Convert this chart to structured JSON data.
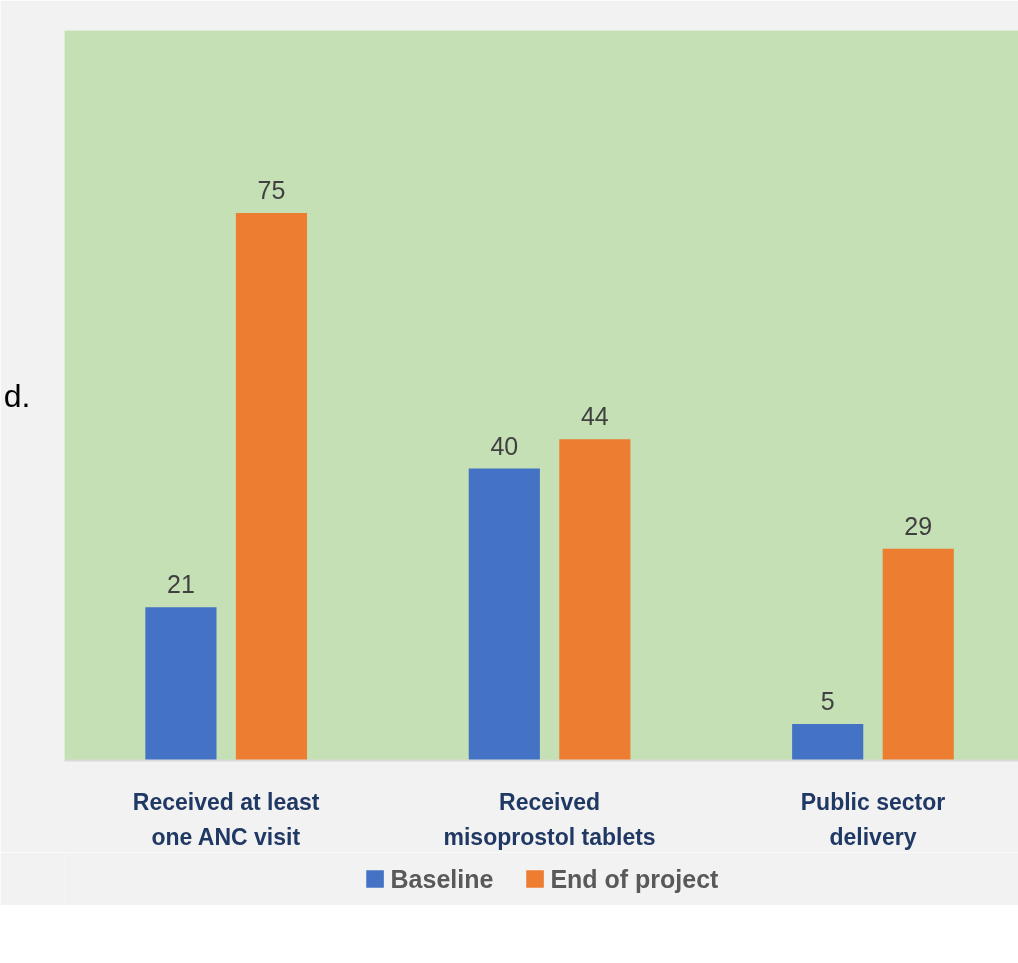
{
  "chart_data": {
    "type": "bar",
    "categories": [
      "Received at least\none ANC visit",
      "Received\nmisoprostol tablets",
      "Public sector\ndelivery"
    ],
    "series": [
      {
        "name": "Baseline",
        "color": "#4472c4",
        "values": [
          21,
          40,
          5
        ]
      },
      {
        "name": "End of project",
        "color": "#ed7d31",
        "values": [
          75,
          44,
          29
        ]
      }
    ],
    "ylim": [
      0,
      100
    ],
    "data_labels": true,
    "tick_labels": "x",
    "grid": false,
    "legend": "bottom",
    "annotations": [
      "d."
    ]
  }
}
